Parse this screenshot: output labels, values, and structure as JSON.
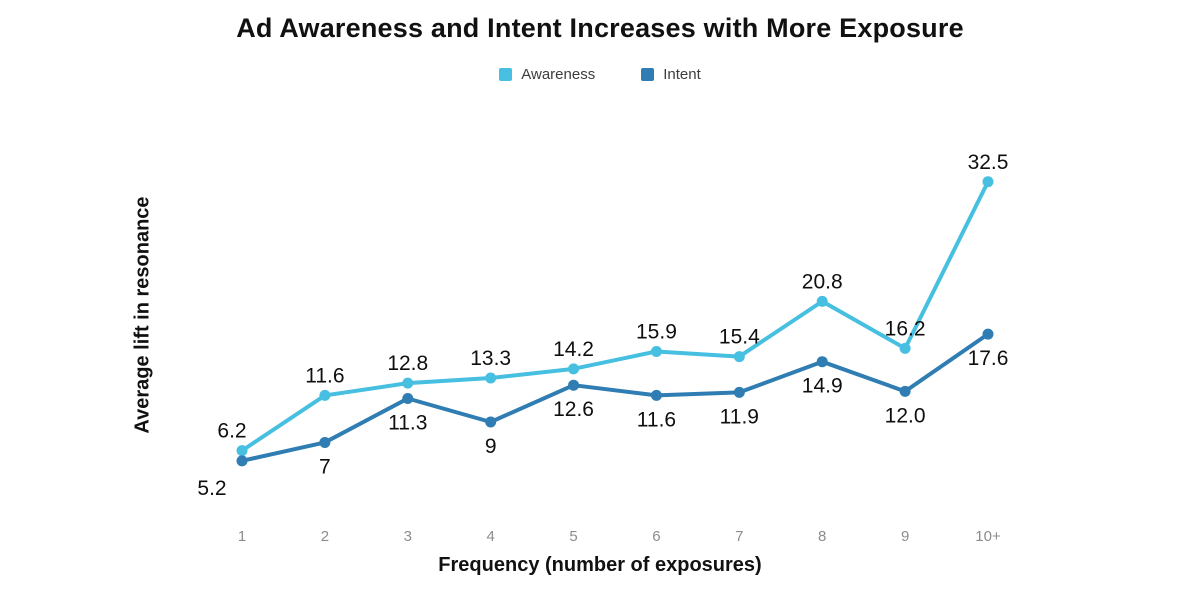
{
  "chart_data": {
    "type": "line",
    "title": "Ad Awareness and Intent Increases with More Exposure",
    "xlabel": "Frequency (number of exposures)",
    "ylabel": "Average lift in resonance",
    "categories": [
      "1",
      "2",
      "3",
      "4",
      "5",
      "6",
      "7",
      "8",
      "9",
      "10+"
    ],
    "series": [
      {
        "name": "Awareness",
        "color": "#46BFE0",
        "values": [
          6.2,
          11.6,
          12.8,
          13.3,
          14.2,
          15.9,
          15.4,
          20.8,
          16.2,
          32.5
        ],
        "point_labels": [
          "6.2",
          "11.6",
          "12.8",
          "13.3",
          "14.2",
          "15.9",
          "15.4",
          "20.8",
          "16.2",
          "32.5"
        ],
        "label_position": "above"
      },
      {
        "name": "Intent",
        "color": "#2F7DB2",
        "values": [
          5.2,
          7,
          11.3,
          9,
          12.6,
          11.6,
          11.9,
          14.9,
          12,
          17.6
        ],
        "point_labels": [
          "5.2",
          "7",
          "11.3",
          "9",
          "12.6",
          "11.6",
          "11.9",
          "14.9",
          "12.0",
          "17.6"
        ],
        "label_position": "below"
      }
    ],
    "ylim": [
      0,
      36
    ],
    "grid": false,
    "legend_position": "top",
    "axes_visible": false,
    "style": {
      "tick_label_color": "#8c8c8c",
      "data_label_color": "#0f0f0f",
      "title_color": "#111111"
    }
  }
}
